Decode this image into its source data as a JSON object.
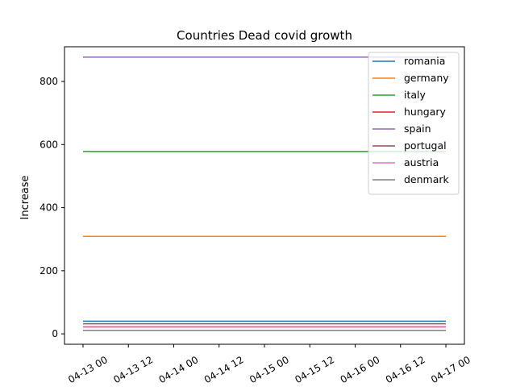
{
  "chart_data": {
    "type": "line",
    "title": "Countries Dead covid growth",
    "xlabel": "",
    "ylabel": "Increase",
    "x": [
      "2020-04-13T00:00",
      "2020-04-17T00:00"
    ],
    "x_ticks": [
      "2020-04-13T00:00",
      "2020-04-13T12:00",
      "2020-04-14T00:00",
      "2020-04-14T12:00",
      "2020-04-15T00:00",
      "2020-04-15T12:00",
      "2020-04-16T00:00",
      "2020-04-16T12:00",
      "2020-04-17T00:00"
    ],
    "x_tick_labels": [
      "04-13 00",
      "04-13 12",
      "04-14 00",
      "04-14 12",
      "04-15 00",
      "04-15 12",
      "04-16 00",
      "04-16 12",
      "04-17 00"
    ],
    "ylim": [
      -33,
      910
    ],
    "y_ticks": [
      0,
      200,
      400,
      600,
      800
    ],
    "y_tick_labels": [
      "0",
      "200",
      "400",
      "600",
      "800"
    ],
    "grid": false,
    "legend_position": "top-right",
    "series": [
      {
        "name": "romania",
        "color": "#1f77b4",
        "values": [
          40,
          40
        ]
      },
      {
        "name": "germany",
        "color": "#ff7f0e",
        "values": [
          309,
          309
        ]
      },
      {
        "name": "italy",
        "color": "#2ca02c",
        "values": [
          578,
          578
        ]
      },
      {
        "name": "hungary",
        "color": "#d62728",
        "values": [
          22,
          22
        ]
      },
      {
        "name": "spain",
        "color": "#9467bd",
        "values": [
          877,
          877
        ]
      },
      {
        "name": "portugal",
        "color": "#8c564b",
        "values": [
          32,
          32
        ]
      },
      {
        "name": "austria",
        "color": "#e377c2",
        "values": [
          23,
          23
        ]
      },
      {
        "name": "denmark",
        "color": "#7f7f7f",
        "values": [
          11,
          11
        ]
      }
    ]
  }
}
